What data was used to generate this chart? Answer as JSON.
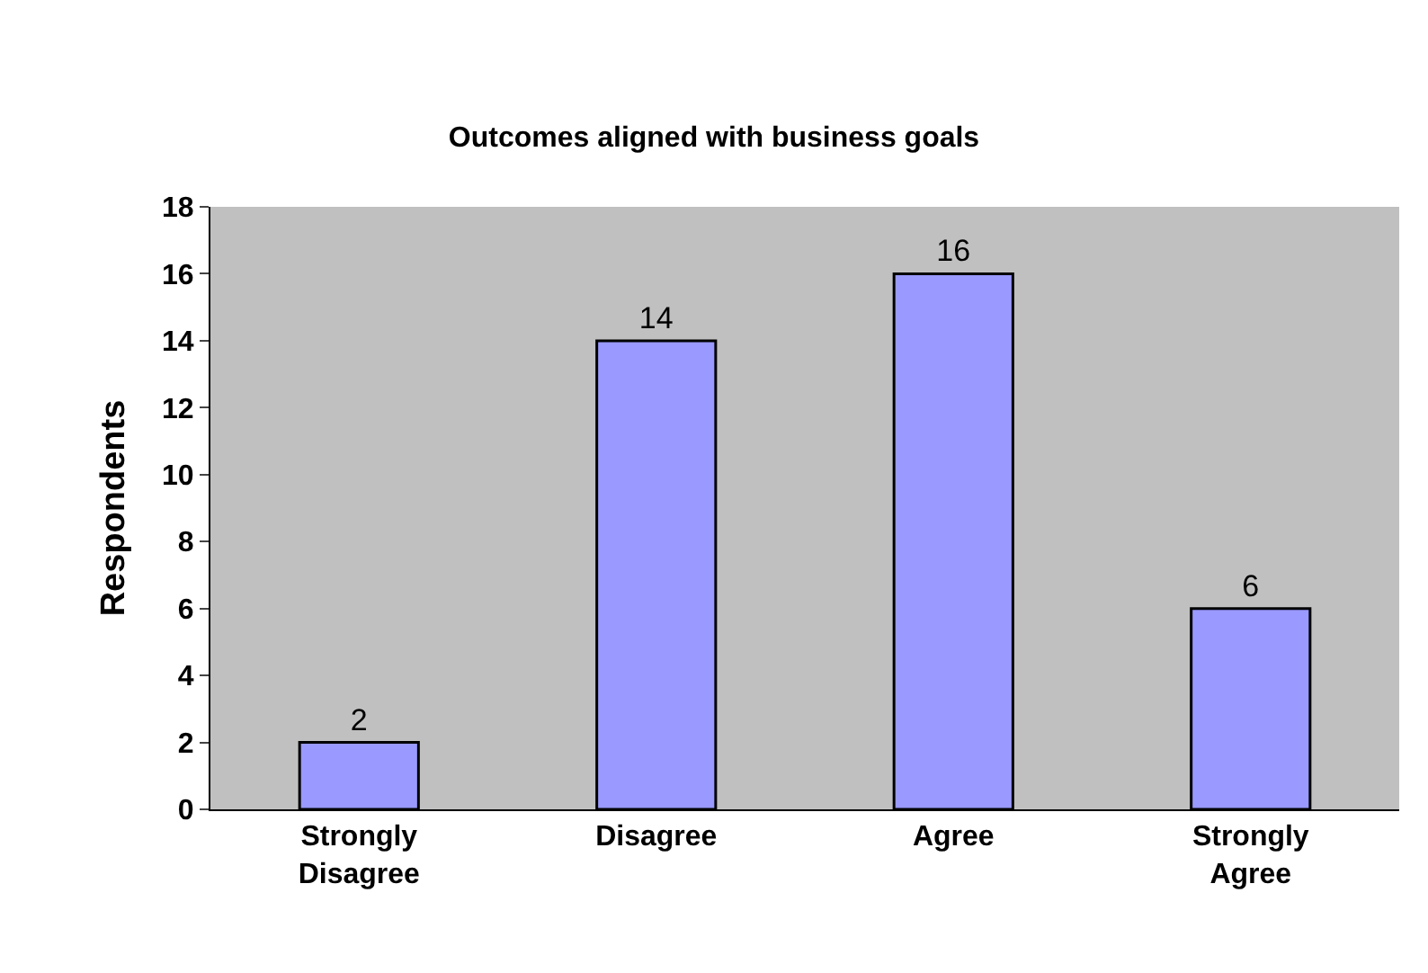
{
  "chart_data": {
    "type": "bar",
    "title": "Outcomes aligned with business goals",
    "ylabel": "Respondents",
    "categories": [
      "Strongly\nDisagree",
      "Disagree",
      "Agree",
      "Strongly\nAgree"
    ],
    "values": [
      2,
      14,
      16,
      6
    ],
    "color": "#9999ff",
    "ylim": [
      0,
      18
    ],
    "yticks": [
      0,
      2,
      4,
      6,
      8,
      10,
      12,
      14,
      16,
      18
    ],
    "grid": false,
    "legend": false,
    "data_labels": true
  }
}
